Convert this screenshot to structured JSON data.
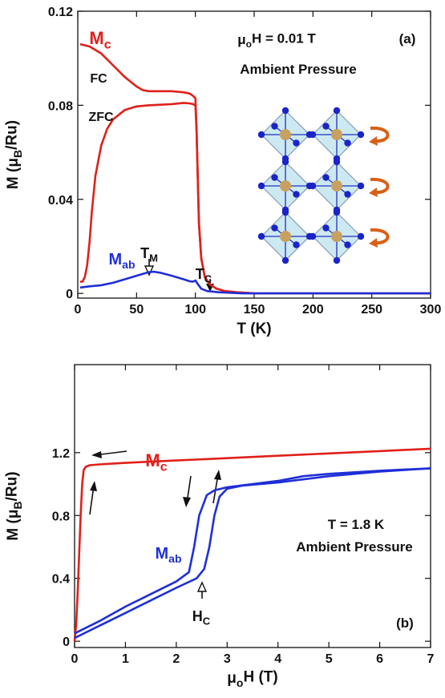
{
  "chart_data": [
    {
      "type": "line",
      "xlabel": [
        "T (K)"
      ],
      "ylabel": [
        "M (μ",
        "B",
        "/Ru)"
      ],
      "xlim": [
        0,
        300
      ],
      "xticks": [
        0,
        50,
        100,
        150,
        200,
        250,
        300
      ],
      "ylim": [
        -0.002,
        0.12
      ],
      "yticks": [
        0,
        0.04,
        0.08,
        0.12
      ],
      "series": [
        {
          "color": "#e0201a",
          "x": [
            2,
            10,
            20,
            30,
            40,
            50,
            55,
            60,
            70,
            80,
            90,
            95,
            98,
            100,
            101,
            102,
            103,
            105,
            108,
            112,
            118,
            125,
            135,
            150,
            200,
            250,
            300
          ],
          "values": [
            0.106,
            0.105,
            0.102,
            0.097,
            0.092,
            0.088,
            0.0865,
            0.086,
            0.086,
            0.086,
            0.0855,
            0.085,
            0.084,
            0.083,
            0.07,
            0.05,
            0.03,
            0.015,
            0.007,
            0.004,
            0.002,
            0.001,
            0.0005,
            0,
            0,
            0,
            0
          ]
        },
        {
          "color": "#e0201a",
          "x": [
            2,
            4,
            6,
            8,
            10,
            12,
            15,
            20,
            25,
            30,
            40,
            50,
            60,
            80,
            90,
            95,
            98,
            100,
            101,
            102,
            103,
            105,
            108,
            112,
            118,
            125,
            135,
            150
          ],
          "values": [
            0.005,
            0.005,
            0.007,
            0.012,
            0.022,
            0.035,
            0.05,
            0.063,
            0.07,
            0.074,
            0.078,
            0.0795,
            0.08,
            0.0805,
            0.081,
            0.0808,
            0.0805,
            0.08,
            0.07,
            0.05,
            0.03,
            0.015,
            0.007,
            0.004,
            0.002,
            0.001,
            0.0005,
            0
          ]
        },
        {
          "color": "#1f2fd8",
          "x": [
            2,
            10,
            20,
            30,
            40,
            50,
            60,
            65,
            70,
            80,
            90,
            95,
            98,
            100,
            102,
            105,
            110,
            120,
            140,
            200,
            300
          ],
          "values": [
            0.0025,
            0.003,
            0.0035,
            0.0045,
            0.006,
            0.0075,
            0.009,
            0.0092,
            0.0088,
            0.0075,
            0.006,
            0.0052,
            0.005,
            0.0055,
            0.004,
            0.002,
            0.001,
            0.0005,
            0,
            0,
            0
          ]
        }
      ],
      "annotations": [
        {
          "text": [
            "M",
            "c"
          ],
          "color": "#e0201a"
        },
        {
          "text": [
            "FC"
          ]
        },
        {
          "text": [
            "ZFC"
          ]
        },
        {
          "text": [
            "μ",
            "o",
            "H = 0.01 T"
          ]
        },
        {
          "text": [
            "(a)"
          ]
        },
        {
          "text": [
            "Ambient Pressure"
          ]
        },
        {
          "text": [
            "T",
            "M"
          ]
        },
        {
          "text": [
            "M",
            "ab"
          ],
          "color": "#1f2fd8"
        },
        {
          "text": [
            "T",
            "C"
          ]
        }
      ]
    },
    {
      "type": "line",
      "xlabel": [
        "μ",
        "o",
        "H (T)"
      ],
      "ylabel": [
        "M (μ",
        "B",
        "/Ru)"
      ],
      "xlim": [
        0,
        7
      ],
      "xticks": [
        0,
        1,
        2,
        3,
        4,
        5,
        6,
        7
      ],
      "ylim": [
        -0.04,
        1.76
      ],
      "yticks": [
        0,
        0.4,
        0.8,
        1.2
      ],
      "series": [
        {
          "color": "#e0201a",
          "x": [
            0,
            0.03,
            0.06,
            0.09,
            0.12,
            0.15,
            0.18,
            0.22,
            0.3,
            0.5,
            1,
            2,
            3,
            4,
            5,
            6,
            7
          ],
          "values": [
            0,
            0.1,
            0.3,
            0.55,
            0.8,
            1.0,
            1.09,
            1.11,
            1.12,
            1.125,
            1.135,
            1.15,
            1.165,
            1.18,
            1.195,
            1.21,
            1.225
          ]
        },
        {
          "color": "#1f2fd8",
          "x": [
            0,
            0.5,
            1,
            1.5,
            2,
            2.4,
            2.55,
            2.65,
            2.75,
            2.85,
            3,
            3.3,
            4,
            5,
            6,
            7
          ],
          "values": [
            0.02,
            0.1,
            0.18,
            0.26,
            0.34,
            0.4,
            0.46,
            0.6,
            0.8,
            0.92,
            0.97,
            0.99,
            1.01,
            1.05,
            1.08,
            1.1
          ]
        },
        {
          "color": "#1f2fd8",
          "x": [
            7,
            6,
            5,
            4.5,
            4,
            3.5,
            3,
            2.75,
            2.6,
            2.45,
            2.35,
            2.25,
            2,
            1.5,
            1,
            0.5,
            0
          ],
          "values": [
            1.1,
            1.085,
            1.065,
            1.05,
            1.02,
            1.0,
            0.98,
            0.96,
            0.93,
            0.8,
            0.6,
            0.44,
            0.38,
            0.3,
            0.22,
            0.13,
            0.05
          ]
        }
      ],
      "annotations": [
        {
          "text": [
            "M",
            "c"
          ],
          "color": "#e0201a"
        },
        {
          "text": [
            "M",
            "ab"
          ],
          "color": "#1f2fd8"
        },
        {
          "text": [
            "T = 1.8 K"
          ]
        },
        {
          "text": [
            "Ambient Pressure"
          ]
        },
        {
          "text": [
            "H",
            "C"
          ]
        },
        {
          "text": [
            "(b)"
          ]
        }
      ]
    }
  ]
}
